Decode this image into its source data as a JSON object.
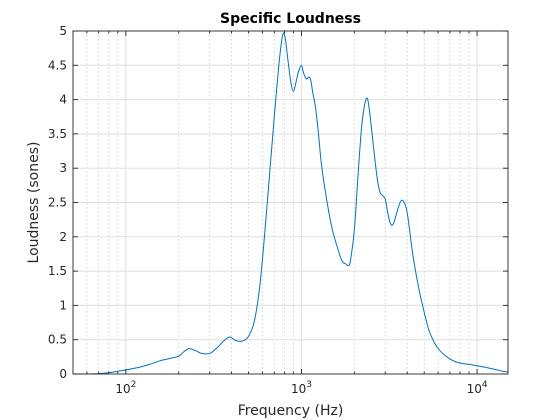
{
  "chart_data": {
    "type": "line",
    "title": "Specific Loudness",
    "xlabel": "Frequency (Hz)",
    "ylabel": "Loudness (sones)",
    "xscale": "log",
    "xlim": [
      50,
      15000
    ],
    "ylim": [
      0,
      5
    ],
    "grid": "major and minor",
    "xticks": [
      {
        "value": 100,
        "base": "10",
        "exp": "2"
      },
      {
        "value": 1000,
        "base": "10",
        "exp": "3"
      },
      {
        "value": 10000,
        "base": "10",
        "exp": "4"
      }
    ],
    "yticks": [
      {
        "value": 0,
        "label": "0"
      },
      {
        "value": 0.5,
        "label": "0.5"
      },
      {
        "value": 1,
        "label": "1"
      },
      {
        "value": 1.5,
        "label": "1.5"
      },
      {
        "value": 2,
        "label": "2"
      },
      {
        "value": 2.5,
        "label": "2.5"
      },
      {
        "value": 3,
        "label": "3"
      },
      {
        "value": 3.5,
        "label": "3.5"
      },
      {
        "value": 4,
        "label": "4"
      },
      {
        "value": 4.5,
        "label": "4.5"
      },
      {
        "value": 5,
        "label": "5"
      }
    ],
    "series": [
      {
        "color": "#0072bd",
        "x": [
          50,
          60,
          70,
          80,
          90,
          100,
          120,
          140,
          160,
          180,
          200,
          215,
          230,
          250,
          270,
          300,
          330,
          360,
          390,
          420,
          460,
          500,
          540,
          580,
          620,
          660,
          700,
          740,
          770,
          790,
          810,
          840,
          870,
          900,
          930,
          960,
          1000,
          1030,
          1070,
          1100,
          1130,
          1160,
          1200,
          1250,
          1300,
          1400,
          1500,
          1600,
          1700,
          1800,
          1850,
          1900,
          2000,
          2100,
          2200,
          2300,
          2370,
          2420,
          2500,
          2600,
          2700,
          2800,
          2900,
          3000,
          3100,
          3200,
          3300,
          3400,
          3550,
          3700,
          3850,
          4000,
          4150,
          4300,
          4500,
          4700,
          5000,
          5300,
          5600,
          6000,
          6500,
          7000,
          7500,
          8000,
          9000,
          10000,
          11000,
          12000,
          13000,
          14000,
          15000
        ],
        "y": [
          0,
          0,
          0.005,
          0.02,
          0.04,
          0.06,
          0.1,
          0.15,
          0.2,
          0.23,
          0.26,
          0.33,
          0.37,
          0.34,
          0.3,
          0.3,
          0.38,
          0.48,
          0.54,
          0.49,
          0.48,
          0.55,
          0.78,
          1.3,
          2.1,
          2.95,
          3.75,
          4.45,
          4.85,
          4.97,
          4.88,
          4.55,
          4.25,
          4.12,
          4.25,
          4.4,
          4.5,
          4.38,
          4.3,
          4.33,
          4.28,
          4.1,
          3.9,
          3.5,
          3.05,
          2.5,
          2.1,
          1.85,
          1.65,
          1.6,
          1.58,
          1.65,
          2.1,
          2.9,
          3.6,
          3.95,
          4.02,
          3.9,
          3.6,
          3.2,
          2.85,
          2.65,
          2.6,
          2.55,
          2.35,
          2.2,
          2.17,
          2.25,
          2.42,
          2.53,
          2.5,
          2.35,
          2.05,
          1.75,
          1.45,
          1.2,
          0.9,
          0.65,
          0.5,
          0.37,
          0.28,
          0.22,
          0.18,
          0.16,
          0.14,
          0.12,
          0.1,
          0.08,
          0.06,
          0.04,
          0.03
        ]
      }
    ]
  }
}
